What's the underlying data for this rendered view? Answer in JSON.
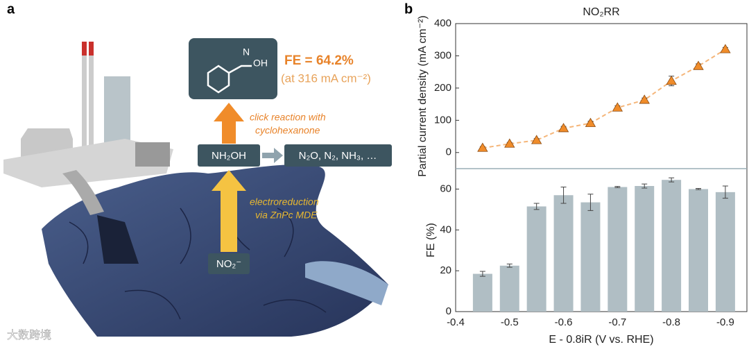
{
  "panel_a": {
    "label": "a",
    "product_n": "N",
    "product_oh": "OH",
    "fe": "FE = 64.2%",
    "fe_condition": "(at 316 mA cm⁻²)",
    "click_line1": "click reaction with",
    "click_line2": "cyclohexanone",
    "intermediate": "NH₂OH",
    "byproducts": "N₂O, N₂, NH₃, …",
    "electro_line1": "electroreduction",
    "electro_line2": "via ZnPc MDE",
    "reactant": "NO₂⁻",
    "watermark": "大数跨境"
  },
  "panel_b": {
    "label": "b"
  },
  "chart_data": [
    {
      "type": "line",
      "title": "NO₂RR",
      "y_label": "Partial current density (mA cm⁻²)",
      "x": [
        -0.45,
        -0.5,
        -0.55,
        -0.6,
        -0.65,
        -0.7,
        -0.75,
        -0.8,
        -0.85,
        -0.9
      ],
      "series": [
        {
          "color": "#f08c2a",
          "values": [
            14,
            27,
            38,
            75,
            91,
            139,
            163,
            222,
            268,
            320
          ],
          "errors": [
            4,
            4,
            5,
            6,
            6,
            6,
            6,
            15,
            7,
            6
          ]
        }
      ],
      "xlim": [
        -0.4,
        -0.94
      ],
      "ylim": [
        -50,
        400
      ],
      "yticks": [
        0,
        100,
        200,
        300,
        400
      ]
    },
    {
      "type": "bar",
      "y_label": "FE (%)",
      "x_label": "E - 0.8iR (V vs. RHE)",
      "x": [
        -0.45,
        -0.5,
        -0.55,
        -0.6,
        -0.65,
        -0.7,
        -0.75,
        -0.8,
        -0.85,
        -0.9
      ],
      "series": [
        {
          "color": "#b0bec4",
          "values": [
            18.5,
            22.5,
            51.5,
            57,
            53.5,
            61,
            61.5,
            64.5,
            60,
            58.5
          ],
          "errors": [
            1.2,
            0.8,
            1.5,
            4,
            4,
            0.3,
            1,
            1,
            0.3,
            3
          ]
        }
      ],
      "xlim": [
        -0.4,
        -0.94
      ],
      "ylim": [
        0,
        70
      ],
      "yticks": [
        0,
        20,
        40,
        60
      ],
      "xticks": [
        -0.4,
        -0.5,
        -0.6,
        -0.7,
        -0.8,
        -0.9
      ]
    }
  ]
}
